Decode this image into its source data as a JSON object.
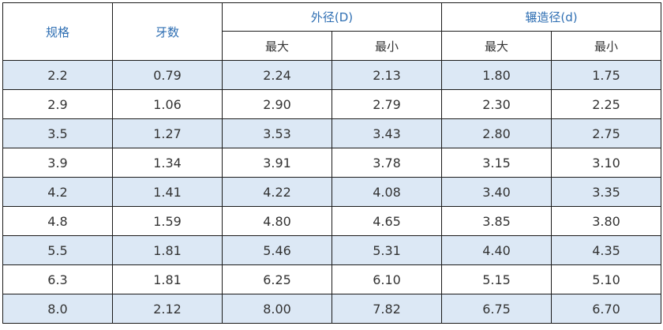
{
  "table": {
    "headers": {
      "spec": "规格",
      "pitch": "牙数",
      "outer": "外径(D)",
      "rolling": "辗造径(d)",
      "max": "最大",
      "min": "最小"
    },
    "rows": [
      [
        "2.2",
        "0.79",
        "2.24",
        "2.13",
        "1.80",
        "1.75"
      ],
      [
        "2.9",
        "1.06",
        "2.90",
        "2.79",
        "2.30",
        "2.25"
      ],
      [
        "3.5",
        "1.27",
        "3.53",
        "3.43",
        "2.80",
        "2.75"
      ],
      [
        "3.9",
        "1.34",
        "3.91",
        "3.78",
        "3.15",
        "3.10"
      ],
      [
        "4.2",
        "1.41",
        "4.22",
        "4.08",
        "3.40",
        "3.35"
      ],
      [
        "4.8",
        "1.59",
        "4.80",
        "4.65",
        "3.85",
        "3.80"
      ],
      [
        "5.5",
        "1.81",
        "5.46",
        "5.31",
        "4.40",
        "4.35"
      ],
      [
        "6.3",
        "1.81",
        "6.25",
        "6.10",
        "5.15",
        "5.10"
      ],
      [
        "8.0",
        "2.12",
        "8.00",
        "7.82",
        "6.75",
        "6.70"
      ]
    ],
    "colors": {
      "header_text": "#2f6fb3",
      "alt_row_bg": "#dce8f5",
      "border": "#1a1a1a"
    }
  }
}
